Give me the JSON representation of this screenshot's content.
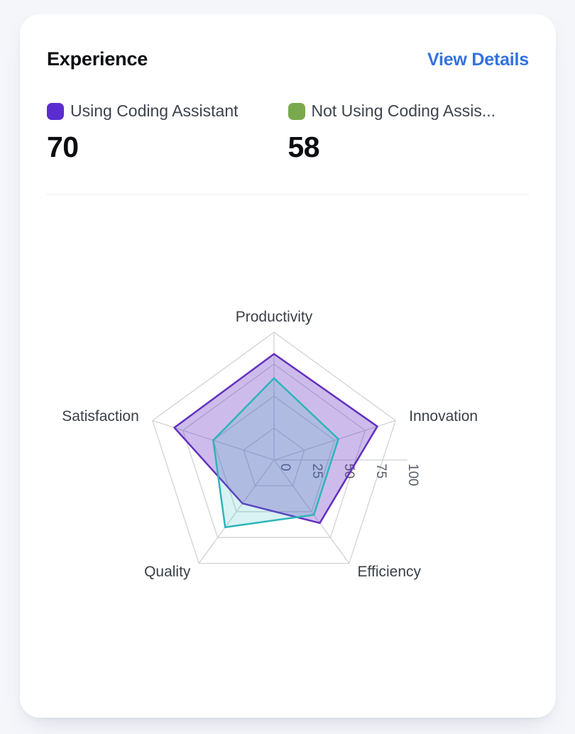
{
  "card": {
    "title": "Experience",
    "link_label": "View Details",
    "legend": [
      {
        "label": "Using Coding Assistant",
        "value": "70",
        "color": "#5b2dd0"
      },
      {
        "label": "Not Using Coding Assis...",
        "value": "58",
        "color": "#79a94c"
      }
    ]
  },
  "chart_data": {
    "type": "radar",
    "indicators": [
      "Productivity",
      "Innovation",
      "Efficiency",
      "Quality",
      "Satisfaction"
    ],
    "max": 100,
    "tick_labels": [
      0,
      25,
      50,
      75,
      100
    ],
    "series": [
      {
        "name": "Using Coding Assistant",
        "color": "#6430c0",
        "fill_opacity": 0.32,
        "values": [
          83,
          85,
          61,
          42,
          82
        ]
      },
      {
        "name": "Not Using Coding Assistant",
        "color": "#2cb5ba",
        "fill_opacity": 0.18,
        "values": [
          64,
          53,
          53,
          65,
          50
        ]
      }
    ],
    "grid_color": "#d0d2d6",
    "label_color": "#3a3f46",
    "tick_color": "#585d65",
    "legend_position": "top",
    "grid": "pentagon-rings"
  }
}
